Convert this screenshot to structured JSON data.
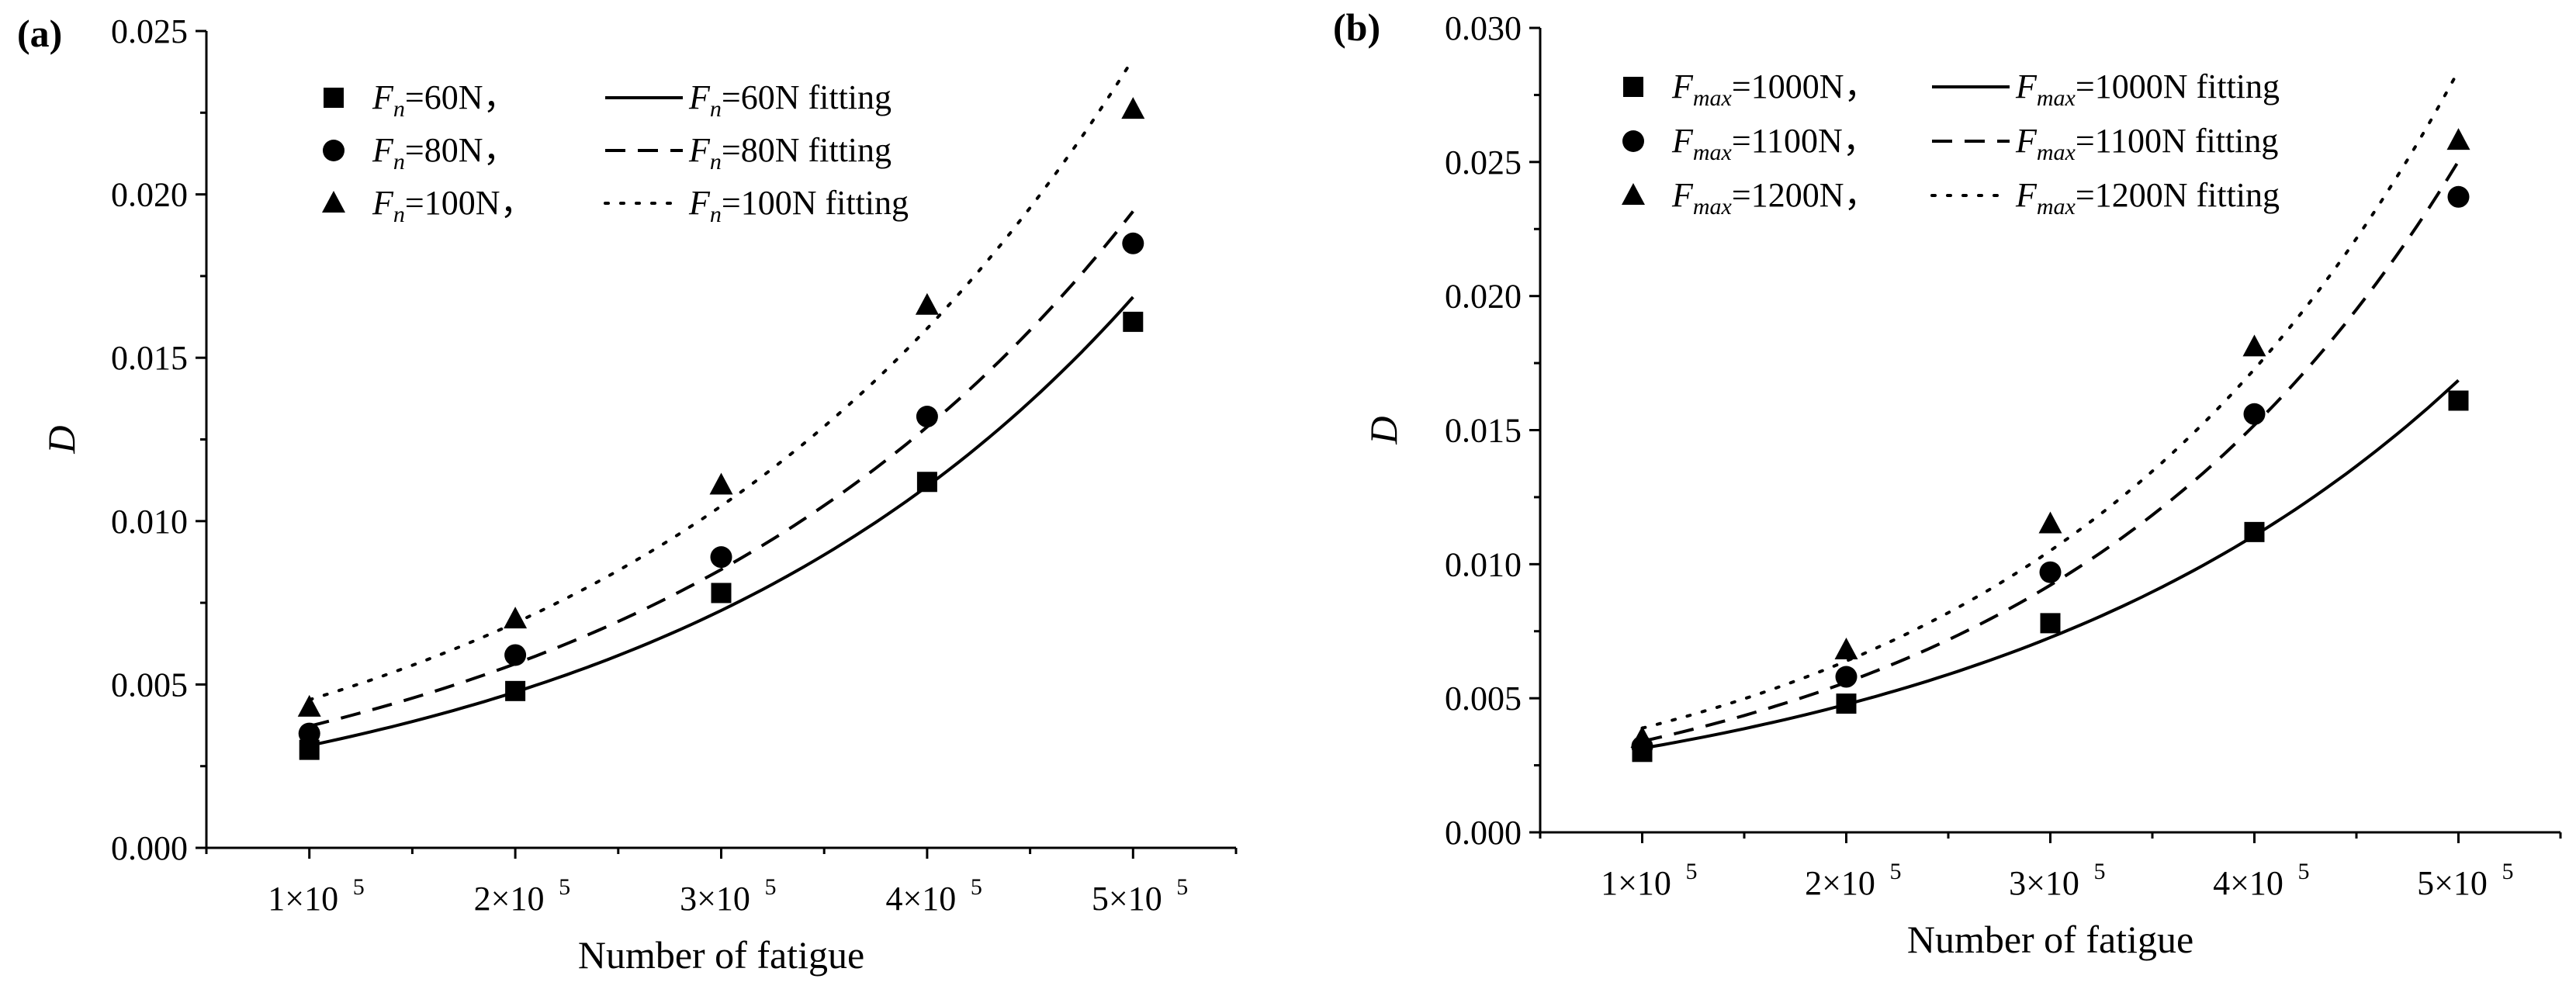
{
  "chart_data": [
    {
      "panel_label": "(a)",
      "type": "scatter",
      "xlabel": "Number of fatigue",
      "ylabel": "D",
      "x": [
        1,
        2,
        3,
        4,
        5
      ],
      "x_tick_labels": [
        "1×10",
        "2×10",
        "3×10",
        "4×10",
        "5×10"
      ],
      "x_tick_exponent": "5",
      "xlim": [
        0.5,
        5.5
      ],
      "ylim": [
        0,
        0.025
      ],
      "y_ticks": [
        0,
        0.005,
        0.01,
        0.015,
        0.02,
        0.025
      ],
      "y_tick_labels": [
        "0.000",
        "0.005",
        "0.010",
        "0.015",
        "0.020",
        "0.025"
      ],
      "legend_position": "top-left",
      "series": [
        {
          "var": "F",
          "sub": "n",
          "point_suffix": "=60N，",
          "fit_suffix": "=60N fitting",
          "marker": "square",
          "fit_style": "solid",
          "values": [
            0.003,
            0.0048,
            0.0078,
            0.0112,
            0.0161
          ]
        },
        {
          "var": "F",
          "sub": "n",
          "point_suffix": "=80N，",
          "fit_suffix": "=80N fitting",
          "marker": "circle",
          "fit_style": "dashed",
          "values": [
            0.0035,
            0.0059,
            0.0089,
            0.0132,
            0.0185
          ]
        },
        {
          "var": "F",
          "sub": "n",
          "point_suffix": "=100N，",
          "fit_suffix": "=100N fitting",
          "marker": "triangle",
          "fit_style": "dotted",
          "values": [
            0.0043,
            0.007,
            0.0111,
            0.0166,
            0.0226
          ]
        }
      ]
    },
    {
      "panel_label": "(b)",
      "type": "scatter",
      "xlabel": "Number of fatigue",
      "ylabel": "D",
      "x": [
        1,
        2,
        3,
        4,
        5
      ],
      "x_tick_labels": [
        "1×10",
        "2×10",
        "3×10",
        "4×10",
        "5×10"
      ],
      "x_tick_exponent": "5",
      "xlim": [
        0.5,
        5.5
      ],
      "ylim": [
        0,
        0.03
      ],
      "y_ticks": [
        0,
        0.005,
        0.01,
        0.015,
        0.02,
        0.025,
        0.03
      ],
      "y_tick_labels": [
        "0.000",
        "0.005",
        "0.010",
        "0.015",
        "0.020",
        "0.025",
        "0.030"
      ],
      "legend_position": "top-left",
      "series": [
        {
          "var": "F",
          "sub": "max",
          "point_suffix": "=1000N，",
          "fit_suffix": "=1000N fitting",
          "marker": "square",
          "fit_style": "solid",
          "values": [
            0.003,
            0.0048,
            0.0078,
            0.0112,
            0.0161
          ]
        },
        {
          "var": "F",
          "sub": "max",
          "point_suffix": "=1100N，",
          "fit_suffix": "=1100N fitting",
          "marker": "circle",
          "fit_style": "dashed",
          "values": [
            0.0032,
            0.0058,
            0.0097,
            0.0156,
            0.0237
          ]
        },
        {
          "var": "F",
          "sub": "max",
          "point_suffix": "=1200N，",
          "fit_suffix": "=1200N fitting",
          "marker": "triangle",
          "fit_style": "dotted",
          "values": [
            0.0035,
            0.0068,
            0.0115,
            0.0181,
            0.0258
          ]
        }
      ]
    }
  ]
}
